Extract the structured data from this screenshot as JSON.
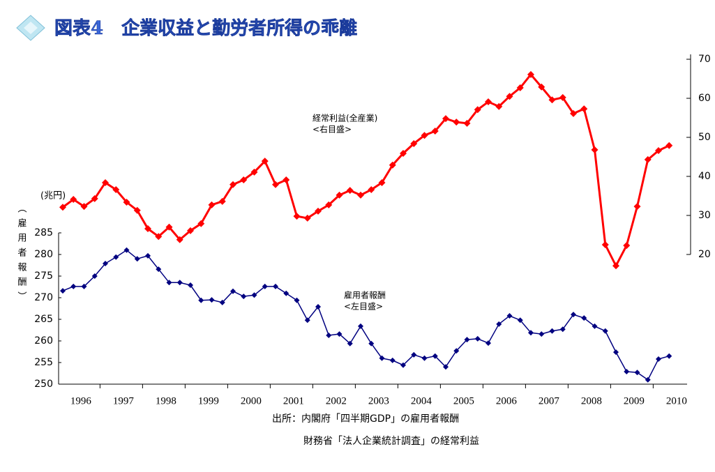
{
  "title": "図表4　企業収益と勤労者所得の乖離",
  "chart_data": {
    "type": "line",
    "y_label": "（雇用者報酬）",
    "unit_label": "(兆円)",
    "categories": [
      "1996",
      null,
      null,
      null,
      "1997",
      null,
      null,
      null,
      "1998",
      null,
      null,
      null,
      "1999",
      null,
      null,
      null,
      "2000",
      null,
      null,
      null,
      "2001",
      null,
      null,
      null,
      "2002",
      null,
      null,
      null,
      "2003",
      null,
      null,
      null,
      "2004",
      null,
      null,
      null,
      "2005",
      null,
      null,
      null,
      "2006",
      null,
      null,
      null,
      "2007",
      null,
      null,
      null,
      "2008",
      null,
      null,
      null,
      "2009",
      null,
      null,
      null,
      "2010",
      null
    ],
    "series": [
      {
        "name": "経常利益(全産業)",
        "legend_note": "<右目盛>",
        "color": "#ff0000",
        "axis": "y2",
        "values": [
          32.1,
          34.1,
          32.3,
          34.3,
          38.4,
          36.6,
          33.4,
          31.3,
          26.6,
          24.6,
          27.0,
          23.8,
          26.1,
          27.9,
          32.7,
          33.6,
          37.9,
          39.1,
          41.1,
          43.9,
          37.9,
          39.1,
          29.8,
          29.3,
          31.1,
          32.7,
          35.2,
          36.4,
          35.2,
          36.6,
          38.4,
          42.9,
          45.9,
          48.4,
          50.5,
          51.6,
          54.8,
          53.9,
          53.6,
          57.1,
          59.1,
          57.9,
          60.5,
          62.7,
          66.1,
          62.9,
          59.6,
          60.2,
          56.1,
          57.3,
          46.8,
          22.5,
          17.1,
          22.3,
          32.3,
          44.3,
          46.6,
          47.9
        ]
      },
      {
        "name": "雇用者報酬",
        "legend_note": "<左目盛>",
        "color": "#000080",
        "values": [
          271.6,
          272.6,
          272.6,
          275.0,
          277.9,
          279.4,
          281.0,
          279.0,
          279.7,
          276.6,
          273.5,
          273.5,
          272.9,
          269.4,
          269.5,
          268.9,
          271.5,
          270.3,
          270.6,
          272.6,
          272.6,
          271.0,
          269.4,
          264.8,
          267.9,
          261.3,
          261.6,
          259.4,
          263.4,
          259.4,
          256.0,
          255.5,
          254.4,
          256.8,
          256.0,
          256.5,
          254.0,
          257.7,
          260.3,
          260.5,
          259.5,
          263.9,
          265.8,
          264.8,
          261.9,
          261.6,
          262.3,
          262.7,
          266.1,
          265.3,
          263.4,
          262.3,
          257.4,
          252.9,
          252.7,
          251.0,
          255.8,
          256.5
        ]
      }
    ],
    "ylim": [
      250,
      285
    ],
    "yticks": [
      250,
      255,
      260,
      265,
      270,
      275,
      280,
      285
    ],
    "y2lim": [
      20,
      70
    ],
    "y2ticks": [
      20,
      30,
      40,
      50,
      60,
      70
    ]
  },
  "sources": [
    "出所：内閣府「四半期GDP」の雇用者報酬",
    "財務省「法人企業統計調査」の経常利益"
  ]
}
